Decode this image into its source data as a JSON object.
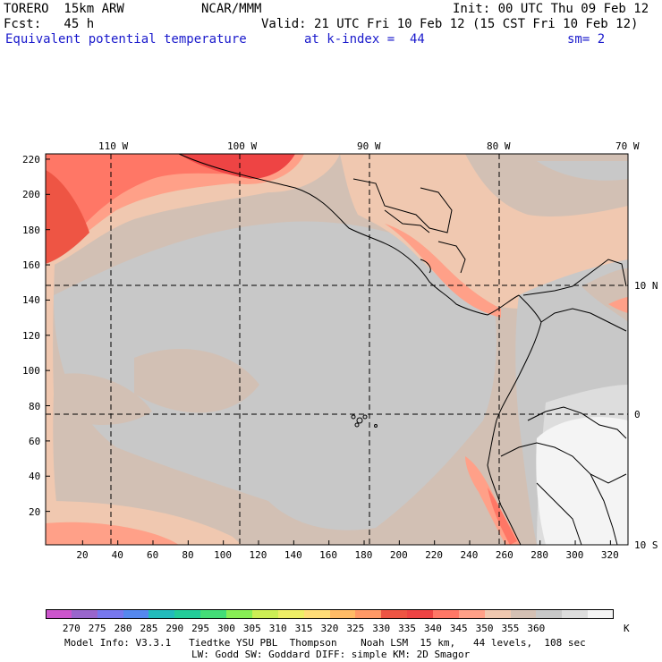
{
  "header": {
    "model": "TORERO  15km ARW",
    "org": "NCAR/MMM",
    "init": "Init: 00 UTC Thu 09 Feb 12",
    "fcst": "Fcst:   45 h",
    "valid": "Valid: 21 UTC Fri 10 Feb 12 (15 CST Fri 10 Feb 12)",
    "field": "Equivalent potential temperature",
    "level": "at k-index =  44",
    "smooth": "sm= 2"
  },
  "axes": {
    "x_ticks": [
      "20",
      "40",
      "60",
      "80",
      "100",
      "120",
      "140",
      "160",
      "180",
      "200",
      "220",
      "240",
      "260",
      "280",
      "300",
      "320"
    ],
    "y_ticks": [
      "220",
      "200",
      "180",
      "160",
      "140",
      "120",
      "100",
      "80",
      "60",
      "40",
      "20"
    ],
    "lon_labels": [
      "110 W",
      "100 W",
      "90 W",
      "80 W",
      "70 W"
    ],
    "lat_labels": [
      "10 N",
      "0",
      "10 S"
    ]
  },
  "colorbar": {
    "colors": [
      "#cc55cc",
      "#9966cc",
      "#7777ee",
      "#5588ee",
      "#22bbbb",
      "#22cc99",
      "#44dd77",
      "#88ee55",
      "#ccee55",
      "#eeee66",
      "#ffdd77",
      "#ffbb66",
      "#ff9966",
      "#ee5544",
      "#ee4444",
      "#ff7766",
      "#ffa088",
      "#f0c8b0",
      "#d4c0b4",
      "#c8c8c8",
      "#dddddd",
      "#f4f4f4"
    ],
    "labels": [
      "270",
      "275",
      "280",
      "285",
      "290",
      "295",
      "300",
      "305",
      "310",
      "315",
      "320",
      "325",
      "330",
      "335",
      "340",
      "345",
      "350",
      "355",
      "360"
    ],
    "unit": "K"
  },
  "footer": {
    "line1": "Model Info: V3.3.1   Tiedtke YSU PBL  Thompson    Noah LSM  15 km,   44 levels,  108 sec",
    "line2": "LW: Godd SW: Goddard DIFF: simple KM: 2D Smagor"
  }
}
